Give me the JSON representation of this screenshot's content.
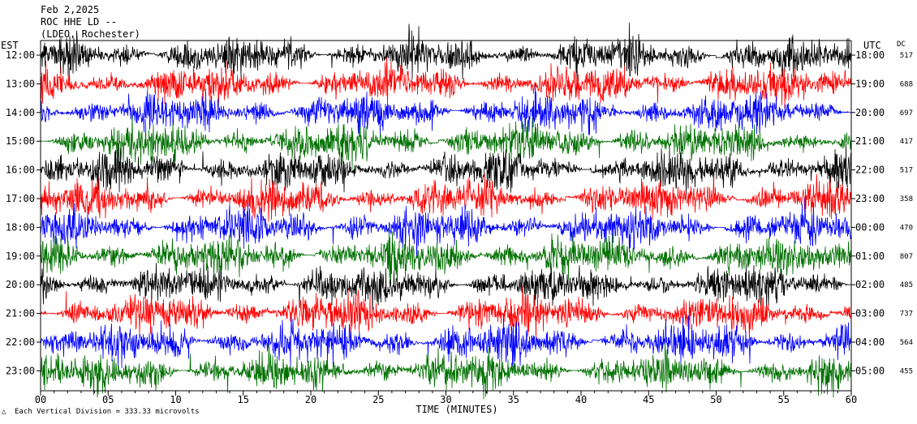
{
  "header": {
    "date": "Feb 2,2025",
    "station": "ROC HHE LD --",
    "network": "(LDEO, Rochester)"
  },
  "chart_data": {
    "type": "line",
    "title": "ROC HHE LD --",
    "xlabel": "TIME (MINUTES)",
    "xlim": [
      0,
      60
    ],
    "x_ticks": [
      "00",
      "05",
      "10",
      "15",
      "20",
      "25",
      "30",
      "35",
      "40",
      "45",
      "50",
      "55",
      "60"
    ],
    "left_axis_title": "EST",
    "right_axis_title": "UTC",
    "dc_header": "DC",
    "trace_colors": [
      "#000000",
      "#ff0000",
      "#0000ff",
      "#007000"
    ],
    "rows": [
      {
        "est": "12:00",
        "utc": "18:00",
        "dc": "517"
      },
      {
        "est": "13:00",
        "utc": "19:00",
        "dc": "688"
      },
      {
        "est": "14:00",
        "utc": "20:00",
        "dc": "697"
      },
      {
        "est": "15:00",
        "utc": "21:00",
        "dc": "417"
      },
      {
        "est": "16:00",
        "utc": "22:00",
        "dc": "517"
      },
      {
        "est": "17:00",
        "utc": "23:00",
        "dc": "358"
      },
      {
        "est": "18:00",
        "utc": "00:00",
        "dc": "470"
      },
      {
        "est": "19:00",
        "utc": "01:00",
        "dc": "807"
      },
      {
        "est": "20:00",
        "utc": "02:00",
        "dc": "485"
      },
      {
        "est": "21:00",
        "utc": "03:00",
        "dc": "737"
      },
      {
        "est": "22:00",
        "utc": "04:00",
        "dc": "564"
      },
      {
        "est": "23:00",
        "utc": "05:00",
        "dc": "455"
      }
    ],
    "footer_note": "Each Vertical Division =  333.33 microvolts"
  }
}
